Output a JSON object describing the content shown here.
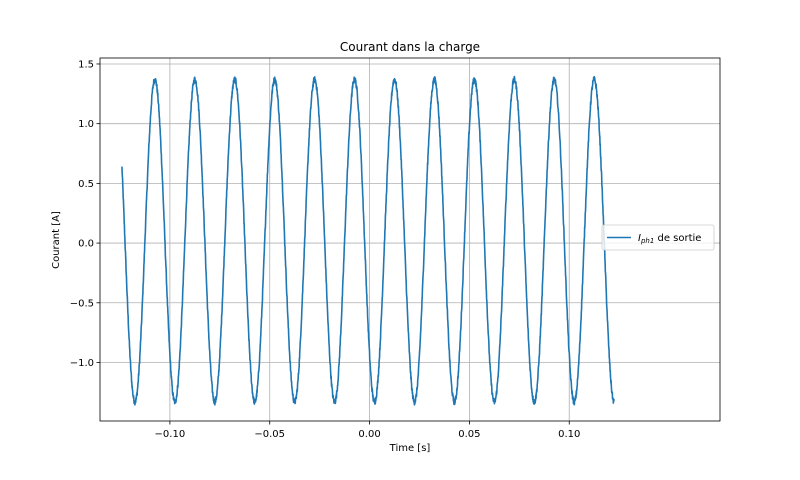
{
  "chart_data": {
    "type": "line",
    "title": "Courant dans la charge",
    "xlabel": "Time [s]",
    "ylabel": "Courant [A]",
    "xlim": [
      -0.135,
      0.1755
    ],
    "ylim": [
      -1.49,
      1.55
    ],
    "xticks": [
      -0.1,
      -0.05,
      0.0,
      0.05,
      0.1
    ],
    "xtick_labels": [
      "−0.10",
      "−0.05",
      "0.00",
      "0.05",
      "0.10"
    ],
    "yticks": [
      -1.0,
      -0.5,
      0.0,
      0.5,
      1.0,
      1.5
    ],
    "ytick_labels": [
      "−1.0",
      "−0.5",
      "0.0",
      "0.5",
      "1.0",
      "1.5"
    ],
    "grid": true,
    "legend_position": "center-right",
    "series": [
      {
        "name_main": "I",
        "name_sub": "ph1",
        "name_rest": " de sortie",
        "color": "#1f77b4",
        "signal": {
          "shape": "sine",
          "x_start": -0.124,
          "x_end": 0.1225,
          "period": 0.02,
          "first_peak_x": -0.1075,
          "amplitude": 1.35,
          "offset": 0.02,
          "peak_value": 1.38,
          "trough_value": -1.32,
          "start_value": 0.55,
          "end_value": -1.28
        }
      }
    ]
  }
}
